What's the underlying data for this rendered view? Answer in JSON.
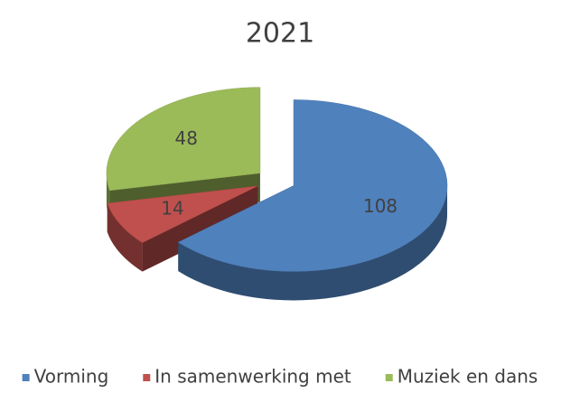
{
  "chart_data": {
    "type": "pie",
    "title": "2021",
    "categories": [
      "Vorming",
      "In samenwerking met",
      "Muziek en dans"
    ],
    "values": [
      108,
      14,
      48
    ],
    "colors": [
      "#4f81bd",
      "#c0504d",
      "#9bbb59"
    ],
    "legend": "bottom"
  }
}
